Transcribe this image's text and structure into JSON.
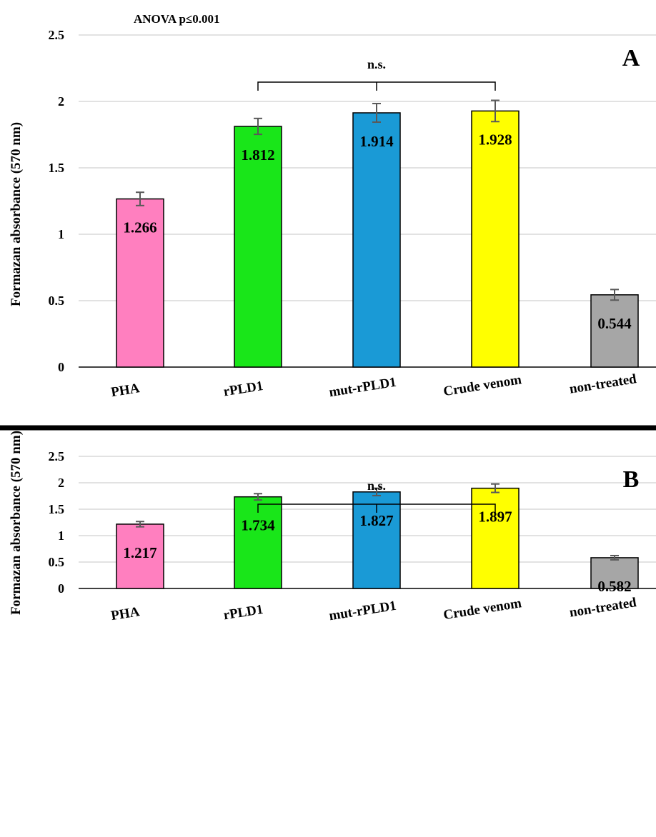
{
  "annotation": "ANOVA  p≤0.001",
  "colors": {
    "bars": [
      "#ff7fbf",
      "#19e619",
      "#1a9ad6",
      "#ffff00",
      "#a6a6a6"
    ],
    "gridline": "#d9d9d9",
    "error_bar": "#595959",
    "divider": "#000000"
  },
  "chart_data": [
    {
      "type": "bar",
      "panel_label": "A",
      "categories": [
        "PHA",
        "rPLD1",
        "mut-rPLD1",
        "Crude venom",
        "non-treated"
      ],
      "values": [
        1.266,
        1.812,
        1.914,
        1.928,
        0.544
      ],
      "data_labels": [
        "1.266",
        "1.812",
        "1.914",
        "1.928",
        "0.544"
      ],
      "error": [
        0.05,
        0.06,
        0.07,
        0.08,
        0.04
      ],
      "ylabel": "Formazan absorbance (570 nm)",
      "ylim": [
        0,
        2.5
      ],
      "yticks": [
        "0",
        "0.5",
        "1",
        "1.5",
        "2",
        "2.5"
      ],
      "grid": true,
      "bracket": {
        "from": "rPLD1",
        "to": "Crude venom",
        "mid": "mut-rPLD1",
        "label": "n.s."
      }
    },
    {
      "type": "bar",
      "panel_label": "B",
      "categories": [
        "PHA",
        "rPLD1",
        "mut-rPLD1",
        "Crude venom",
        "non-treated"
      ],
      "values": [
        1.217,
        1.734,
        1.827,
        1.897,
        0.582
      ],
      "data_labels": [
        "1.217",
        "1.734",
        "1.827",
        "1.897",
        "0.582"
      ],
      "error": [
        0.05,
        0.06,
        0.07,
        0.08,
        0.04
      ],
      "ylabel": "Formazan absorbance (570 nm)",
      "ylim": [
        0,
        2.5
      ],
      "yticks": [
        "0",
        "0.5",
        "1",
        "1.5",
        "2",
        "2.5"
      ],
      "grid": true,
      "bracket": {
        "from": "rPLD1",
        "to": "Crude venom",
        "mid": "mut-rPLD1",
        "label": "n.s."
      }
    }
  ]
}
